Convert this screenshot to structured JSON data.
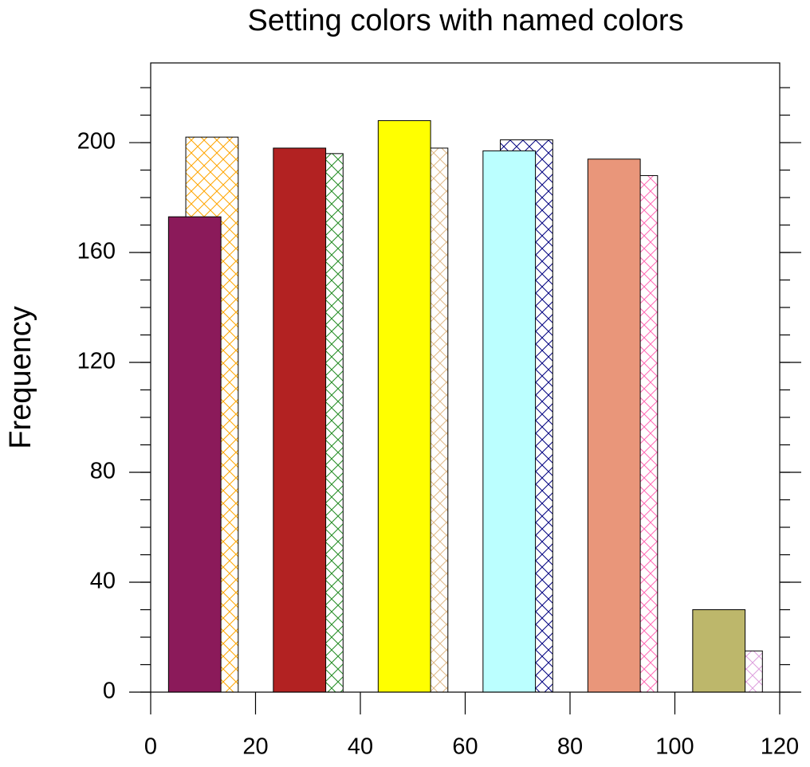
{
  "chart_data": {
    "type": "bar",
    "title": "Setting colors with named colors",
    "y_label": "Frequency",
    "x": [
      10,
      30,
      50,
      70,
      90,
      110
    ],
    "bar_width": 10,
    "series": [
      {
        "style": "hatch",
        "colors": [
          "#ffa500",
          "#228b22",
          "#deb887",
          "#000080",
          "#ff69b4",
          "#dda0dd"
        ],
        "values": [
          202,
          196,
          198,
          201,
          188,
          15
        ]
      },
      {
        "style": "solid",
        "colors": [
          "#8b1a5a",
          "#b22222",
          "#ffff00",
          "#bbffff",
          "#e9967a",
          "#bdb76b"
        ],
        "values": [
          173,
          198,
          208,
          197,
          194,
          30
        ]
      }
    ],
    "xlim": [
      0,
      120
    ],
    "xticks": [
      0,
      20,
      40,
      60,
      80,
      100,
      120
    ],
    "ylim": [
      0,
      229
    ],
    "yticks": [
      0,
      40,
      80,
      120,
      160,
      200
    ],
    "y_minor_step": 10
  }
}
